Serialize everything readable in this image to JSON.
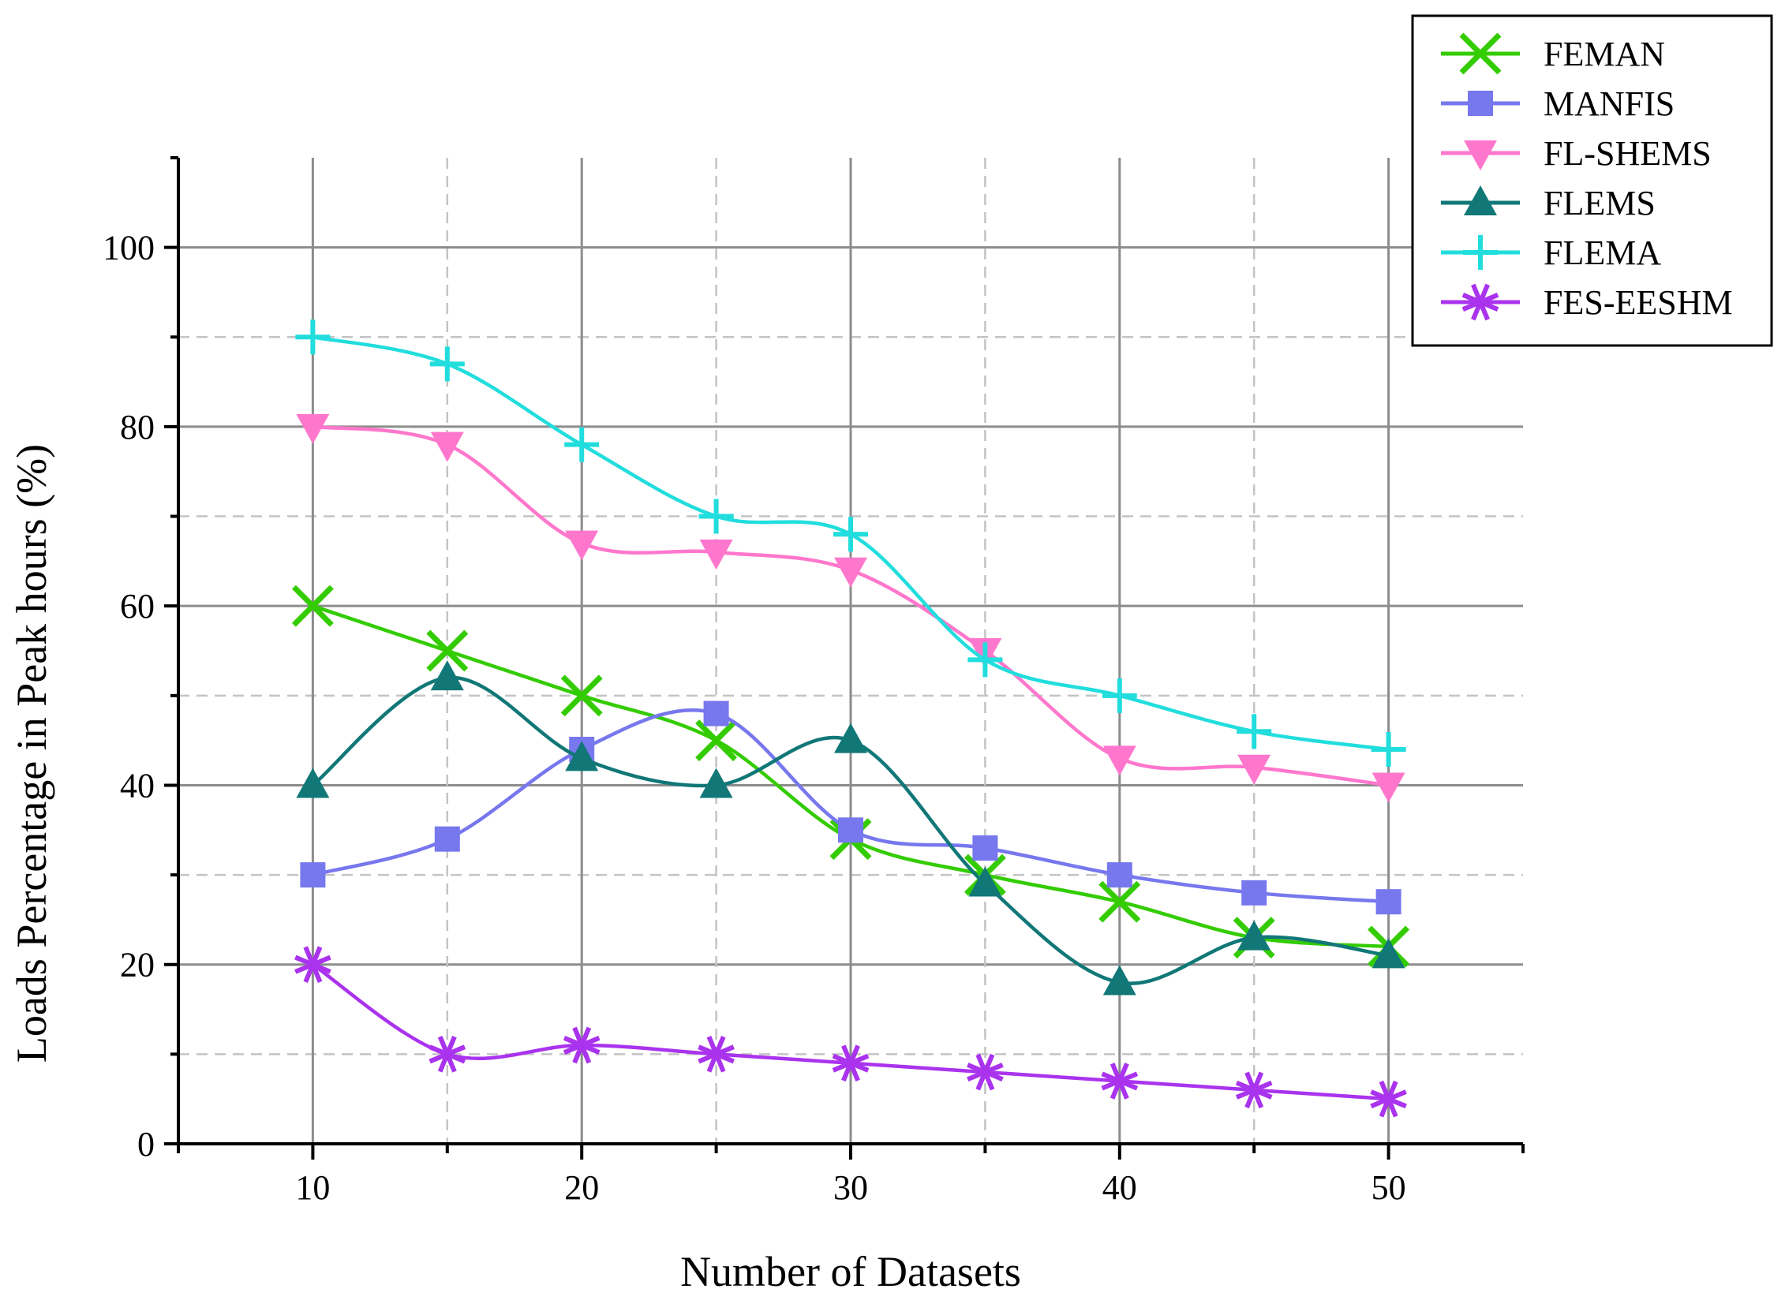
{
  "chart_data": {
    "type": "line",
    "title": "",
    "xlabel": "Number of Datasets",
    "ylabel": "Loads Percentage in Peak hours (%)",
    "xlim": [
      5,
      55
    ],
    "ylim": [
      0,
      110
    ],
    "x": [
      10,
      15,
      20,
      25,
      30,
      35,
      40,
      45,
      50
    ],
    "xticks": [
      "10",
      "20",
      "30",
      "40",
      "50"
    ],
    "yticks": [
      "0",
      "20",
      "40",
      "60",
      "80",
      "100"
    ],
    "grid": true,
    "legend_position": "top-right",
    "series": [
      {
        "name": "FEMAN",
        "marker": "x",
        "color": "#33cc00",
        "values": [
          60,
          55,
          50,
          45,
          34,
          30,
          27,
          23,
          22
        ]
      },
      {
        "name": "MANFIS",
        "marker": "square",
        "color": "#7777ee",
        "values": [
          30,
          34,
          44,
          48,
          35,
          33,
          30,
          28,
          27
        ]
      },
      {
        "name": "FL-SHEMS",
        "marker": "triangle-down",
        "color": "#ff77cc",
        "values": [
          80,
          78,
          67,
          66,
          64,
          55,
          43,
          42,
          40
        ]
      },
      {
        "name": "FLEMS",
        "marker": "triangle-up",
        "color": "#117777",
        "values": [
          40,
          52,
          43,
          40,
          45,
          29,
          18,
          23,
          21
        ]
      },
      {
        "name": "FLEMA",
        "marker": "plus",
        "color": "#22dddd",
        "values": [
          90,
          87,
          78,
          70,
          68,
          54,
          50,
          46,
          44
        ]
      },
      {
        "name": "FES-EESHM",
        "marker": "asterisk",
        "color": "#aa33ee",
        "values": [
          20,
          10,
          11,
          10,
          9,
          8,
          7,
          6,
          5
        ]
      }
    ]
  }
}
